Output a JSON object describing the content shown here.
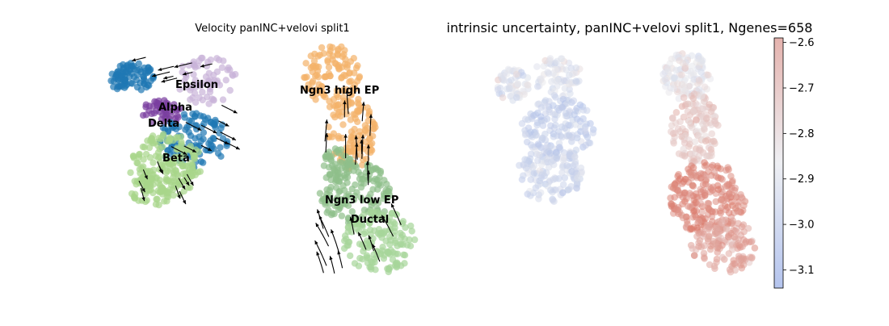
{
  "figure": {
    "background": "#ffffff"
  },
  "chart_data": [
    {
      "type": "scatter",
      "title": "Velocity panINC+velovi split1",
      "xlabel": "",
      "ylabel": "",
      "grid": false,
      "legend": "none",
      "clusters": [
        {
          "name": "Epsilon",
          "color": "#c9b3d8"
        },
        {
          "name": "Alpha",
          "color": "#1f77b4"
        },
        {
          "name": "Delta",
          "color": "#7a3fa0"
        },
        {
          "name": "Beta",
          "color": "#a8d58a"
        },
        {
          "name": "Ngn3 high EP",
          "color": "#f4b26a"
        },
        {
          "name": "Ngn3 low EP",
          "color": "#8fbf8a"
        },
        {
          "name": "Ductal",
          "color": "#a7d59a"
        }
      ],
      "overlay": "velocity streamlines (black arrows)"
    },
    {
      "type": "scatter",
      "title": "intrinsic uncertainty, panINC+velovi split1, Ngenes=658",
      "xlabel": "",
      "ylabel": "",
      "grid": false,
      "colormap": "coolwarm",
      "colorbar": {
        "min": -3.14,
        "max": -2.59,
        "ticks": [
          "−2.6",
          "−2.7",
          "−2.8",
          "−2.9",
          "−3.0",
          "−3.1"
        ],
        "low_color": "#b4c4ee",
        "mid_color": "#f2f2f2",
        "high_color": "#e5b3ae"
      }
    }
  ]
}
